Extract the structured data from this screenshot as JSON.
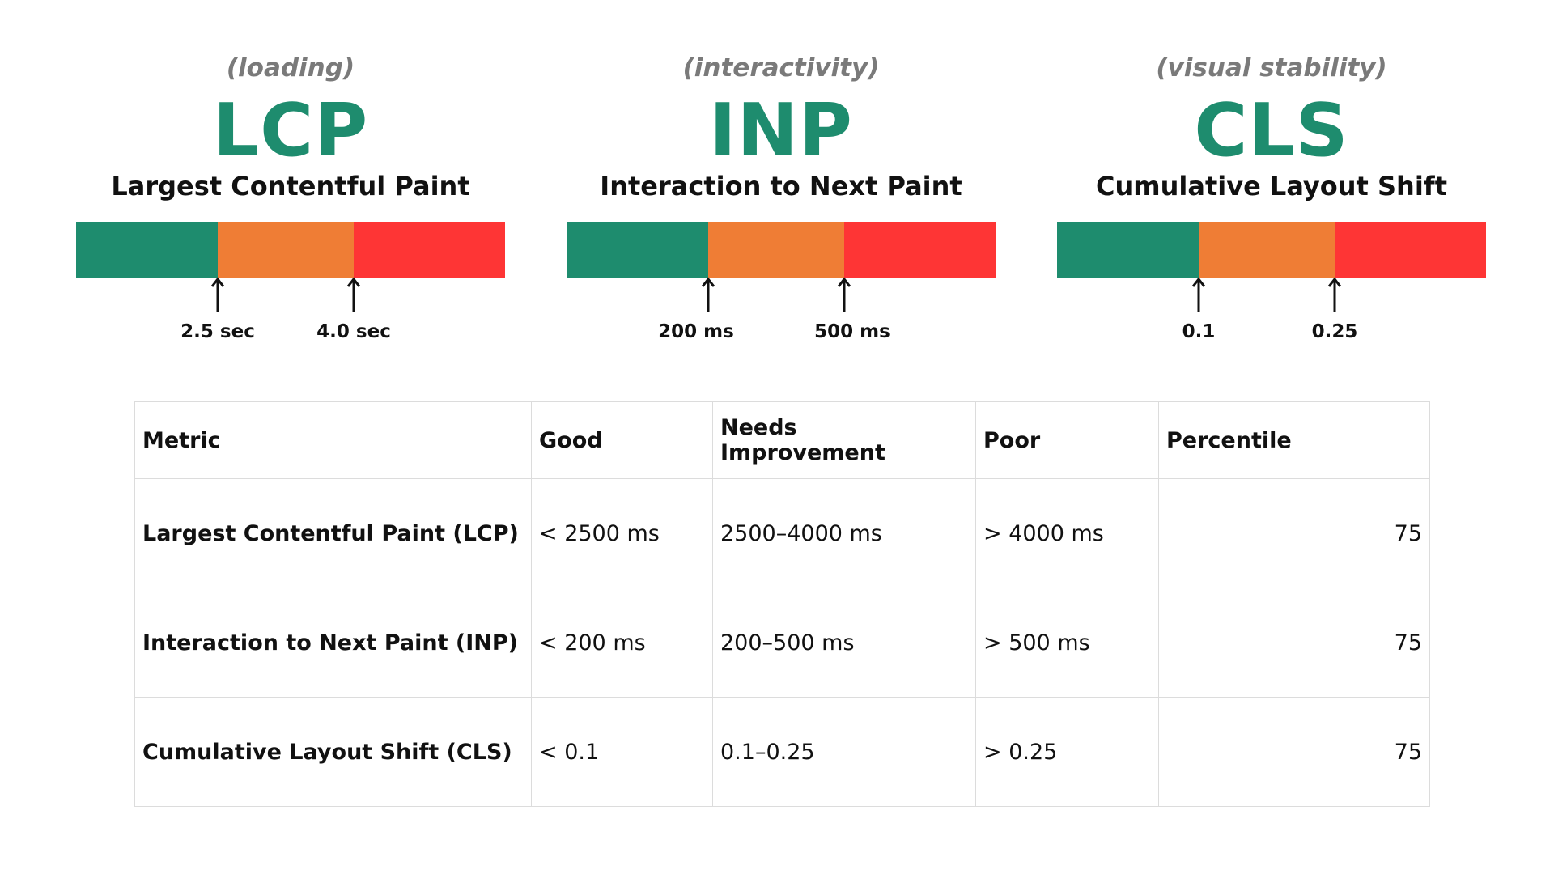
{
  "metrics": [
    {
      "category": "(loading)",
      "abbr": "LCP",
      "full_name": "Largest Contentful Paint",
      "thresholds": [
        "2.5 sec",
        "4.0 sec"
      ]
    },
    {
      "category": "(interactivity)",
      "abbr": "INP",
      "full_name": "Interaction to Next Paint",
      "thresholds": [
        "200 ms",
        "500 ms"
      ]
    },
    {
      "category": "(visual stability)",
      "abbr": "CLS",
      "full_name": "Cumulative Layout Shift",
      "thresholds": [
        "0.1",
        "0.25"
      ]
    }
  ],
  "colors": {
    "good": "#1e8c6e",
    "needs_improvement": "#ef7d35",
    "poor": "#fe3535",
    "accent_text": "#1e8c6e",
    "category_text": "#7a7a7a"
  },
  "table": {
    "headers": [
      "Metric",
      "Good",
      "Needs Improvement",
      "Poor",
      "Percentile"
    ],
    "rows": [
      [
        "Largest Contentful Paint (LCP)",
        "< 2500 ms",
        "2500–4000 ms",
        "> 4000 ms",
        "75"
      ],
      [
        "Interaction to Next Paint (INP)",
        "< 200 ms",
        "200–500 ms",
        "> 500 ms",
        "75"
      ],
      [
        "Cumulative Layout Shift (CLS)",
        "< 0.1",
        "0.1–0.25",
        "> 0.25",
        "75"
      ]
    ]
  }
}
